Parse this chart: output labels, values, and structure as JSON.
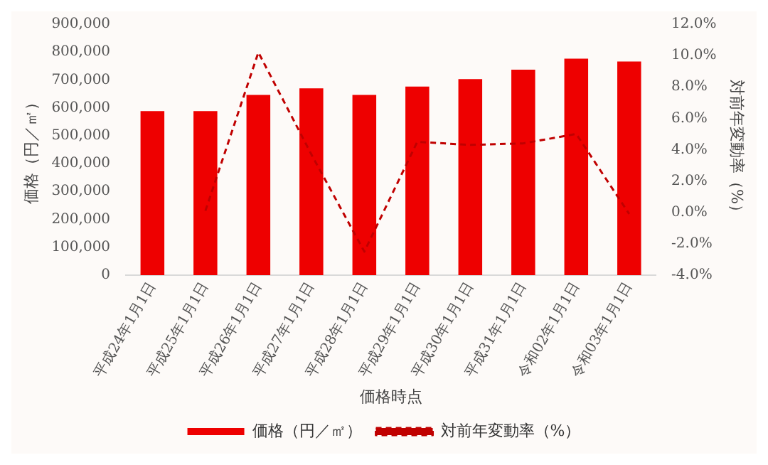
{
  "chart_data": {
    "type": "bar",
    "xlabel": "価格時点",
    "ylabel": "価格（円／㎡）",
    "y2label": "対前年変動率（%）",
    "categories": [
      "平成24年1月1日",
      "平成25年1月1日",
      "平成26年1月1日",
      "平成27年1月1日",
      "平成28年1月1日",
      "平成29年1月1日",
      "平成30年1月1日",
      "平成31年1月1日",
      "令和02年1月1日",
      "令和03年1月1日"
    ],
    "series": [
      {
        "name": "価格（円／㎡）",
        "color": "#ee0000",
        "values": [
          588000,
          588000,
          646000,
          670000,
          646000,
          676000,
          703000,
          737000,
          776000,
          766000
        ]
      },
      {
        "name": "対前年変動率（%）",
        "type": "line",
        "axis": "y2",
        "color": "#c00000",
        "line_style": "dashed",
        "values": [
          null,
          0.1,
          10.2,
          3.7,
          -2.5,
          4.5,
          4.3,
          4.4,
          5.0,
          -0.1
        ]
      }
    ],
    "ylim": [
      0,
      900000
    ],
    "yticks": [
      0,
      {
        "value": 100000,
        "label": "100,000"
      },
      {
        "value": 200000,
        "label": "200,000"
      },
      {
        "value": 300000,
        "label": "300,000"
      },
      {
        "value": 400000,
        "label": "400,000"
      },
      {
        "value": 500000,
        "label": "500,000"
      },
      {
        "value": 600000,
        "label": "600,000"
      },
      {
        "value": 700000,
        "label": "700,000"
      },
      {
        "value": 800000,
        "label": "800,000"
      },
      {
        "value": 900000,
        "label": "900,000"
      }
    ],
    "y2lim": [
      -4,
      12
    ],
    "y2ticks": [
      {
        "value": -4,
        "label": "-4.0%"
      },
      {
        "value": -2,
        "label": "-2.0%"
      },
      {
        "value": 0,
        "label": "0.0%"
      },
      {
        "value": 2,
        "label": "2.0%"
      },
      {
        "value": 4,
        "label": "4.0%"
      },
      {
        "value": 6,
        "label": "6.0%"
      },
      {
        "value": 8,
        "label": "8.0%"
      },
      {
        "value": 10,
        "label": "10.0%"
      },
      {
        "value": 12,
        "label": "12.0%"
      }
    ],
    "legend": "bottom",
    "marker": "none",
    "grid": false
  }
}
